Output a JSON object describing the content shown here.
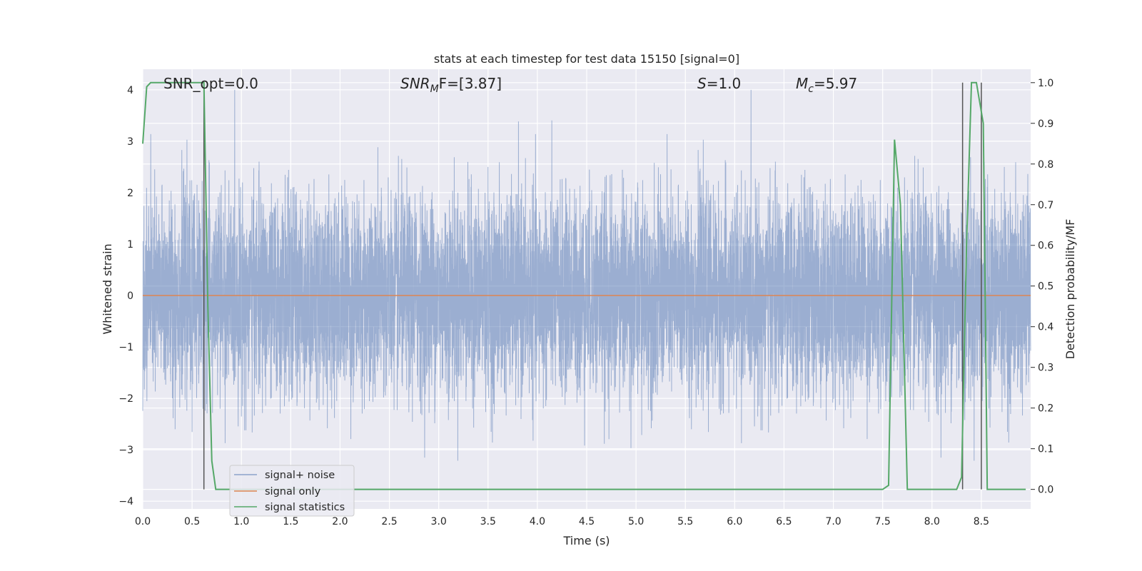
{
  "chart_data": {
    "type": "line",
    "title": "stats at each timestep for test data 15150 [signal=0]",
    "xlabel": "Time (s)",
    "ylabel": "Whitened strain",
    "y2label": "Detection probability/MF",
    "xlim": [
      0.0,
      9.0
    ],
    "ylim": [
      -4.15,
      4.4
    ],
    "y2lim": [
      -0.048,
      1.033
    ],
    "x_ticks": [
      "0.0",
      "0.5",
      "1.0",
      "1.5",
      "2.0",
      "2.5",
      "3.0",
      "3.5",
      "4.0",
      "4.5",
      "5.0",
      "5.5",
      "6.0",
      "6.5",
      "7.0",
      "7.5",
      "8.0",
      "8.5"
    ],
    "y_ticks": [
      "4",
      "3",
      "2",
      "1",
      "0",
      "−1",
      "−2",
      "−3",
      "−4"
    ],
    "y2_ticks": [
      "1.0",
      "0.9",
      "0.8",
      "0.7",
      "0.6",
      "0.5",
      "0.4",
      "0.3",
      "0.2",
      "0.1",
      "0.0"
    ],
    "grid": true,
    "legend_position": "lower-left",
    "annotations": {
      "snr_opt": "SNR_opt=0.0",
      "snr_mf_base": "SNR",
      "snr_mf_sub": "M",
      "snr_mf_rest": "F=[3.87]",
      "s_sym": "S",
      "s_rest": "=1.0",
      "mc_base": "M",
      "mc_sub": "c",
      "mc_rest": "=5.97"
    },
    "series": [
      {
        "name": "signal+ noise",
        "color": "#4c72b0",
        "axis": "left",
        "description_points": "dense whitened noise, approx uniform std ~1 over 0-9 s",
        "envelope_low": -4.0,
        "envelope_high": 4.0
      },
      {
        "name": "signal only",
        "color": "#dd8452",
        "axis": "left",
        "x": [
          0.0,
          9.0
        ],
        "y": [
          0.0,
          0.0
        ]
      },
      {
        "name": "signal statistics",
        "color": "#55a868",
        "axis": "right",
        "x": [
          0.0,
          0.04,
          0.08,
          0.12,
          0.55,
          0.62,
          0.66,
          0.7,
          0.74,
          1.0,
          2.0,
          3.0,
          4.0,
          5.0,
          6.0,
          7.0,
          7.5,
          7.56,
          7.62,
          7.68,
          7.75,
          8.0,
          8.25,
          8.3,
          8.35,
          8.4,
          8.45,
          8.52,
          8.56,
          8.7,
          8.95
        ],
        "y": [
          0.85,
          0.99,
          1.0,
          1.0,
          1.0,
          1.0,
          0.45,
          0.07,
          0.0,
          0.0,
          0.0,
          0.0,
          0.0,
          0.0,
          0.0,
          0.0,
          0.0,
          0.01,
          0.86,
          0.7,
          0.0,
          0.0,
          0.0,
          0.03,
          0.6,
          1.0,
          1.0,
          0.9,
          0.0,
          0.0,
          0.0
        ]
      }
    ],
    "vertical_lines_x": [
      0.62,
      8.31,
      8.5
    ],
    "vertical_lines_color": "#555555"
  }
}
